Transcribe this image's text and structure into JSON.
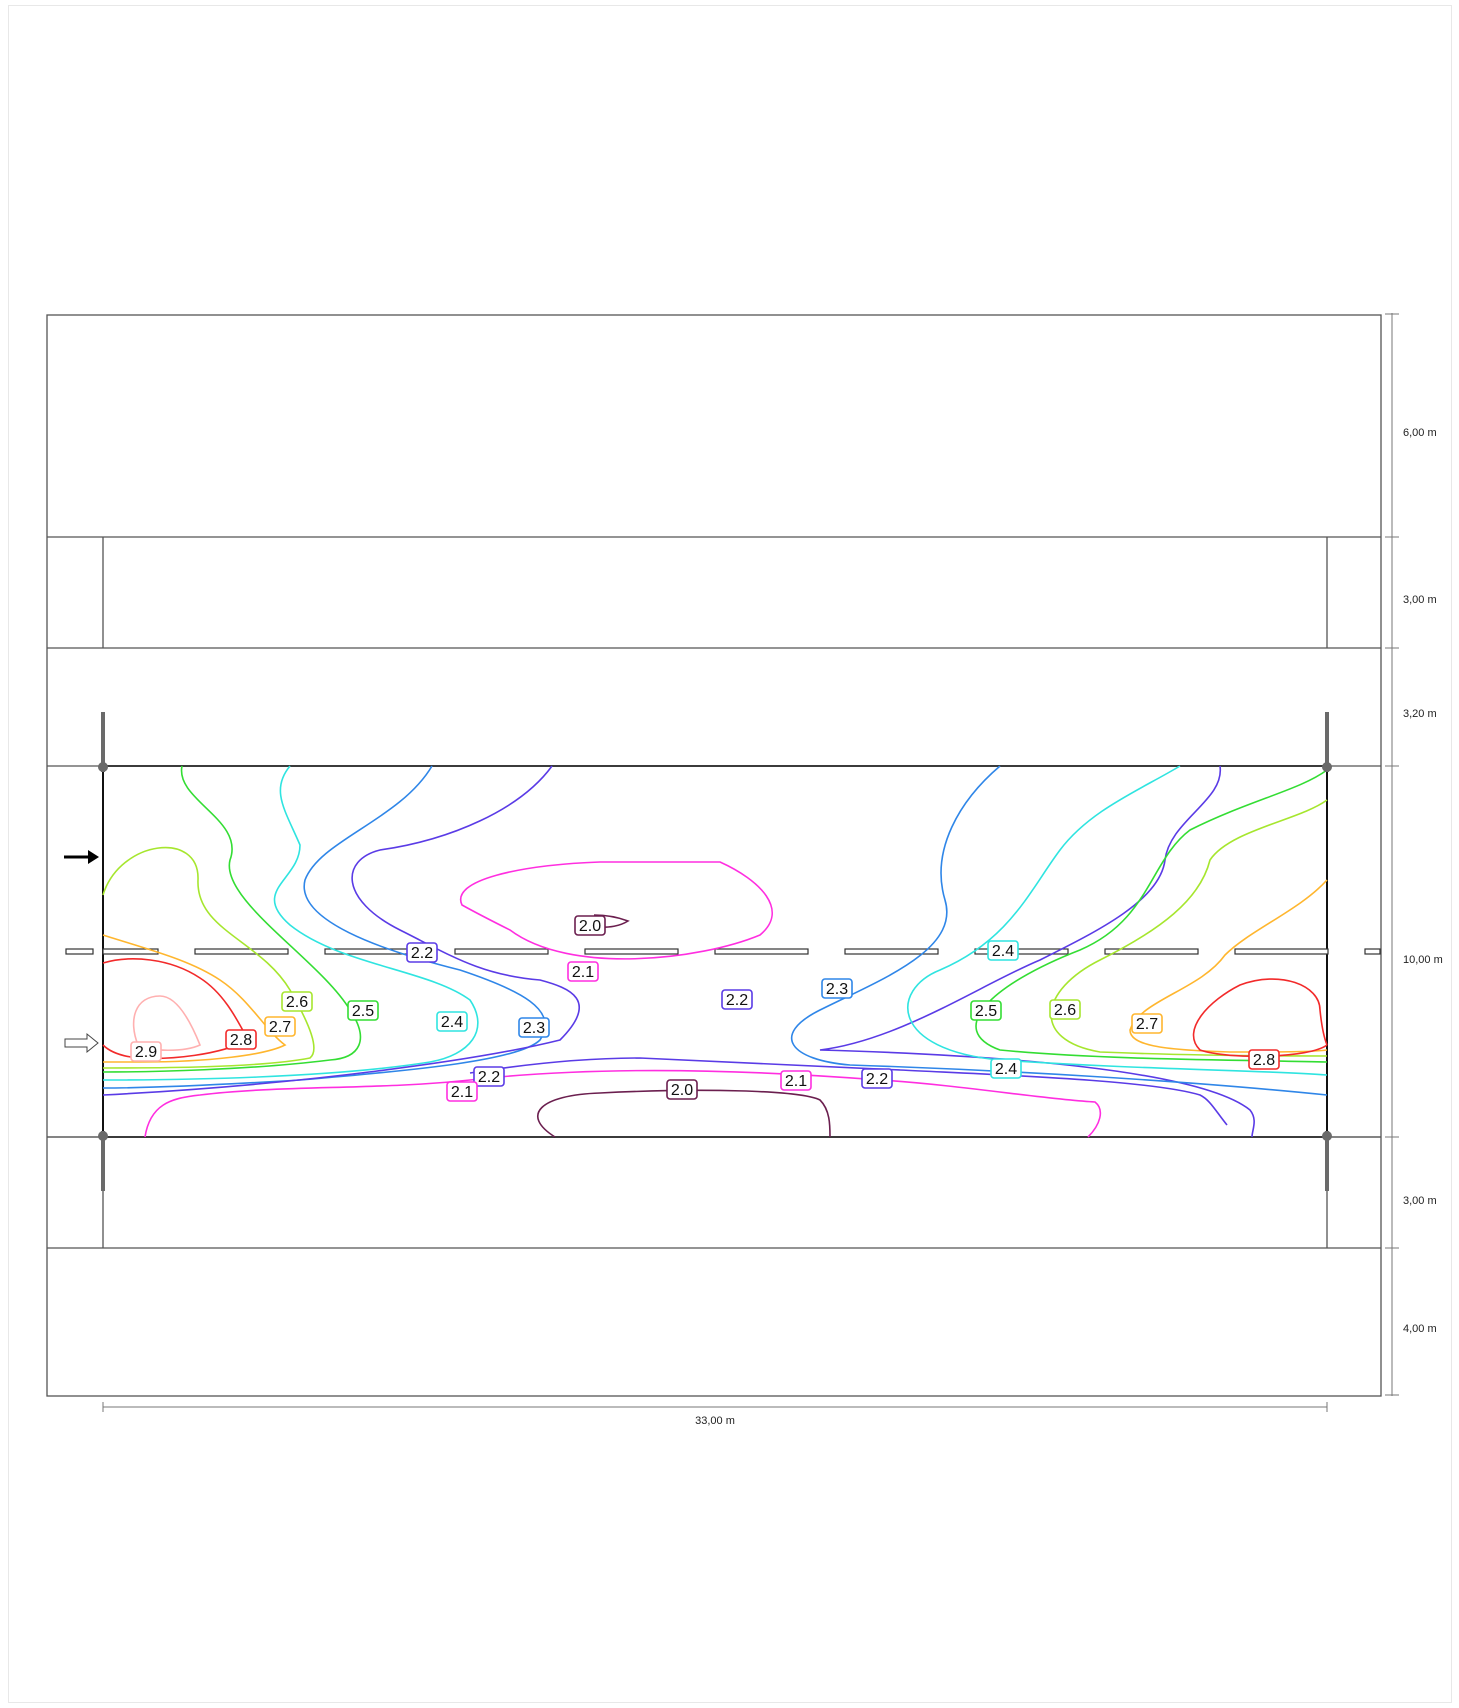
{
  "plan": {
    "width_dim": "33,00 m",
    "height_dims": [
      "6,00 m",
      "3,00 m",
      "3,20 m",
      "10,00 m",
      "3,00 m",
      "4,00 m"
    ]
  },
  "contours": {
    "colors": {
      "2.0": "#6b1f4f",
      "2.1": "#ff2ee0",
      "2.2": "#5a3be6",
      "2.3": "#2f86e8",
      "2.4": "#2fe4e0",
      "2.5": "#33dd33",
      "2.6": "#a6e62e",
      "2.7": "#ffb62e",
      "2.8": "#f22a2a",
      "2.9": "#ffb0b0"
    },
    "labels": [
      {
        "text": "2.0",
        "level": "2.0"
      },
      {
        "text": "2.1",
        "level": "2.1"
      },
      {
        "text": "2.2",
        "level": "2.2"
      },
      {
        "text": "2.2",
        "level": "2.2"
      },
      {
        "text": "2.3",
        "level": "2.3"
      },
      {
        "text": "2.4",
        "level": "2.4"
      },
      {
        "text": "2.6",
        "level": "2.6"
      },
      {
        "text": "2.5",
        "level": "2.5"
      },
      {
        "text": "2.7",
        "level": "2.7"
      },
      {
        "text": "2.4",
        "level": "2.4"
      },
      {
        "text": "2.3",
        "level": "2.3"
      },
      {
        "text": "2.9",
        "level": "2.9"
      },
      {
        "text": "2.8",
        "level": "2.8"
      },
      {
        "text": "2.5",
        "level": "2.5"
      },
      {
        "text": "2.6",
        "level": "2.6"
      },
      {
        "text": "2.7",
        "level": "2.7"
      },
      {
        "text": "2.8",
        "level": "2.8"
      },
      {
        "text": "2.4",
        "level": "2.4"
      },
      {
        "text": "2.2",
        "level": "2.2"
      },
      {
        "text": "2.1",
        "level": "2.1"
      },
      {
        "text": "2.2",
        "level": "2.2"
      },
      {
        "text": "2.1",
        "level": "2.1"
      },
      {
        "text": "2.0",
        "level": "2.0"
      }
    ]
  }
}
